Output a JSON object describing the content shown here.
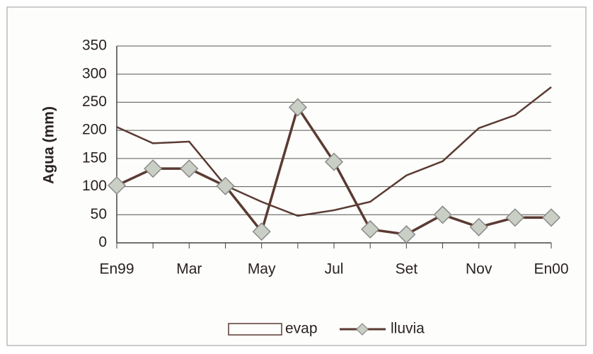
{
  "chart_data": {
    "type": "line",
    "ylabel": "Agua (mm)",
    "categories": [
      "En99",
      null,
      "Mar",
      null,
      "May",
      null,
      "Jul",
      null,
      "Set",
      null,
      "Nov",
      null,
      "En00"
    ],
    "series": [
      {
        "name": "evap",
        "color": "#5a3a32",
        "values": [
          206,
          177,
          180,
          102,
          73,
          48,
          58,
          73,
          120,
          145,
          204,
          227,
          277
        ]
      },
      {
        "name": "lluvia",
        "color": "#5a3a32",
        "marker_color": "#c9cfc4",
        "values": [
          102,
          132,
          132,
          101,
          20,
          241,
          144,
          24,
          15,
          50,
          28,
          45,
          45
        ]
      }
    ],
    "ylim": [
      0,
      350
    ],
    "yticks": [
      0,
      50,
      100,
      150,
      200,
      250,
      300,
      350
    ],
    "grid": true,
    "legend": "bottom"
  }
}
